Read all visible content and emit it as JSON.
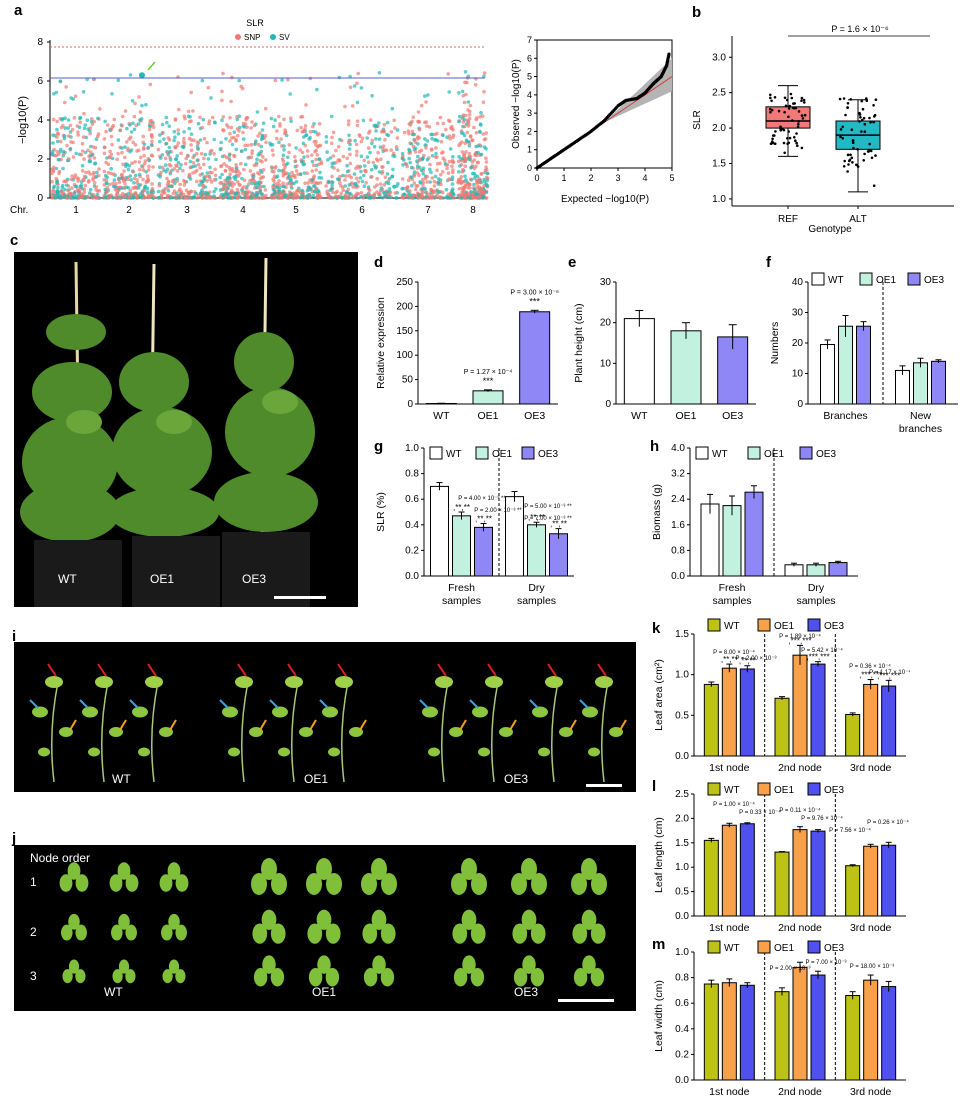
{
  "colors": {
    "wt": "#ffffff",
    "oe1": "#c3f1e0",
    "oe3": "#8f87f5",
    "snp": "#f07a70",
    "sv": "#20b8b8",
    "wt_leaf": "#bcc314",
    "oe1_leaf": "#f8a04a",
    "oe3_leaf": "#5050ee",
    "ref": "#f07a78",
    "alt": "#22b8c4"
  },
  "panel_letters": {
    "a": "a",
    "b": "b",
    "c": "c",
    "d": "d",
    "e": "e",
    "f": "f",
    "g": "g",
    "h": "h",
    "i": "i",
    "j": "j",
    "k": "k",
    "l": "l",
    "m": "m"
  },
  "legend_labels": {
    "wt": "WT",
    "oe1": "OE1",
    "oe3": "OE3"
  },
  "panel_a": {
    "title": "SLR",
    "legend": [
      "SNP",
      "SV"
    ],
    "ylabel": "−log10(P)",
    "yticks": [
      "0",
      "2",
      "4",
      "6",
      "8"
    ],
    "chr_label": "Chr.",
    "chromosomes": [
      "1",
      "2",
      "3",
      "4",
      "5",
      "6",
      "7",
      "8"
    ],
    "qq_ylabel": "Observed −log10(P)",
    "qq_xlabel": "Expected −log10(P)",
    "qq_xticks": [
      "0",
      "1",
      "2",
      "3",
      "4",
      "5"
    ],
    "qq_yticks": [
      "0",
      "1",
      "2",
      "3",
      "4",
      "5",
      "6",
      "7"
    ]
  },
  "panel_b": {
    "pvalue": "P = 1.6 × 10⁻⁶",
    "ylabel": "SLR",
    "xlabel": "Genotype",
    "yticks": [
      "1.0",
      "1.5",
      "2.0",
      "2.5",
      "3.0"
    ]
  },
  "panel_c": {
    "labels": [
      "WT",
      "OE1",
      "OE3"
    ]
  },
  "panel_i": {
    "labels": [
      "WT",
      "OE1",
      "OE3"
    ]
  },
  "panel_j": {
    "title": "Node order",
    "rows": [
      "1",
      "2",
      "3"
    ],
    "labels": [
      "WT",
      "OE1",
      "OE3"
    ]
  },
  "chart_data": [
    {
      "panel": "a",
      "type": "scatter",
      "title": "SLR",
      "xlabel": "Chr.",
      "ylabel": "−log10(P)",
      "categories": [
        "1",
        "2",
        "3",
        "4",
        "5",
        "6",
        "7",
        "8"
      ],
      "ylim": [
        0,
        8
      ],
      "series": [
        {
          "name": "SNP"
        },
        {
          "name": "SV"
        }
      ],
      "significance_lines": [
        7.6,
        6.0
      ],
      "top_hit": {
        "chr": "2",
        "value": 6.3
      }
    },
    {
      "panel": "a-qq",
      "type": "scatter",
      "xlabel": "Expected −log10(P)",
      "ylabel": "Observed −log10(P)",
      "xlim": [
        0,
        5
      ],
      "ylim": [
        0,
        7
      ],
      "x": [
        0,
        0.5,
        1,
        1.5,
        2,
        2.5,
        3,
        3.3,
        3.7,
        4,
        4.3,
        4.6,
        4.8,
        4.9
      ],
      "y": [
        0,
        0.5,
        1,
        1.5,
        2,
        2.6,
        3.4,
        3.7,
        3.8,
        4.1,
        4.6,
        5.0,
        5.6,
        6.3
      ]
    },
    {
      "panel": "b",
      "type": "box",
      "categories": [
        "REF",
        "ALT"
      ],
      "ylabel": "SLR",
      "xlabel": "Genotype",
      "ylim": [
        0.9,
        3.3
      ],
      "series": [
        {
          "name": "REF",
          "min": 1.6,
          "q1": 2.0,
          "median": 2.1,
          "q3": 2.3,
          "max": 2.6
        },
        {
          "name": "ALT",
          "min": 1.1,
          "q1": 1.7,
          "median": 1.9,
          "q3": 2.1,
          "max": 2.4
        }
      ],
      "annotation": "P = 1.6 × 10⁻⁶"
    },
    {
      "panel": "d",
      "type": "bar",
      "categories": [
        "WT",
        "OE1",
        "OE3"
      ],
      "values": [
        1,
        27,
        189
      ],
      "errors": [
        0.5,
        2,
        3
      ],
      "ylabel": "Relative expression",
      "ylim": [
        0,
        250
      ],
      "yticks": [
        0,
        50,
        100,
        150,
        200,
        250
      ],
      "annotations": [
        "",
        "P = 1.27 × 10⁻⁴ ***",
        "P = 3.00 × 10⁻⁶ ***"
      ]
    },
    {
      "panel": "e",
      "type": "bar",
      "categories": [
        "WT",
        "OE1",
        "OE3"
      ],
      "values": [
        21,
        18,
        16.5
      ],
      "errors": [
        2,
        2,
        3
      ],
      "ylabel": "Plant height (cm)",
      "ylim": [
        0,
        30
      ],
      "yticks": [
        0,
        10,
        20,
        30
      ]
    },
    {
      "panel": "f",
      "type": "bar",
      "groups": [
        "Branches",
        "New branches"
      ],
      "series": [
        {
          "name": "WT",
          "values": [
            19.5,
            11
          ],
          "errors": [
            1.5,
            1.5
          ]
        },
        {
          "name": "OE1",
          "values": [
            25.5,
            13.5
          ],
          "errors": [
            3.5,
            1.5
          ]
        },
        {
          "name": "OE3",
          "values": [
            25.5,
            14
          ],
          "errors": [
            1.5,
            0.5
          ]
        }
      ],
      "ylabel": "Numbers",
      "ylim": [
        0,
        40
      ],
      "yticks": [
        0,
        10,
        20,
        30,
        40
      ]
    },
    {
      "panel": "g",
      "type": "bar",
      "groups": [
        "Fresh samples",
        "Dry samples"
      ],
      "series": [
        {
          "name": "WT",
          "values": [
            0.7,
            0.62
          ],
          "errors": [
            0.03,
            0.04
          ]
        },
        {
          "name": "OE1",
          "values": [
            0.47,
            0.4
          ],
          "errors": [
            0.03,
            0.02
          ]
        },
        {
          "name": "OE3",
          "values": [
            0.38,
            0.33
          ],
          "errors": [
            0.03,
            0.04
          ]
        }
      ],
      "ylabel": "SLR (%)",
      "ylim": [
        0,
        1.0
      ],
      "yticks": [
        0,
        0.2,
        0.4,
        0.6,
        0.8,
        1.0
      ],
      "annotations": [
        "P = 4.00 × 10⁻³ **",
        "P = 2.00 × 10⁻³ **",
        "P = 5.00 × 10⁻³ **",
        "P = 7.00 × 10⁻³ **"
      ]
    },
    {
      "panel": "h",
      "type": "bar",
      "groups": [
        "Fresh samples",
        "Dry samples"
      ],
      "series": [
        {
          "name": "WT",
          "values": [
            2.25,
            0.35
          ],
          "errors": [
            0.3,
            0.05
          ]
        },
        {
          "name": "OE1",
          "values": [
            2.2,
            0.35
          ],
          "errors": [
            0.3,
            0.05
          ]
        },
        {
          "name": "OE3",
          "values": [
            2.62,
            0.42
          ],
          "errors": [
            0.2,
            0.04
          ]
        }
      ],
      "ylabel": "Biomass (g)",
      "ylim": [
        0,
        4.0
      ],
      "yticks": [
        0,
        0.8,
        1.6,
        2.4,
        3.2,
        4.0
      ]
    },
    {
      "panel": "k",
      "type": "bar",
      "groups": [
        "1st node",
        "2nd node",
        "3rd node"
      ],
      "series": [
        {
          "name": "WT",
          "values": [
            0.88,
            0.71,
            0.51
          ],
          "errors": [
            0.03,
            0.02,
            0.02
          ]
        },
        {
          "name": "OE1",
          "values": [
            1.08,
            1.24,
            0.88
          ],
          "errors": [
            0.05,
            0.12,
            0.06
          ]
        },
        {
          "name": "OE3",
          "values": [
            1.07,
            1.13,
            0.86
          ],
          "errors": [
            0.04,
            0.03,
            0.07
          ]
        }
      ],
      "ylabel": "Leaf area (cm²)",
      "ylim": [
        0,
        1.5
      ],
      "yticks": [
        0,
        0.5,
        1.0,
        1.5
      ],
      "annotations": [
        "P = 8.00 × 10⁻⁴",
        "P = 2.00 × 10⁻³",
        "P = 1.89 × 10⁻⁴",
        "P = 5.42 × 10⁻⁴",
        "P = 0.36 × 10⁻⁴",
        "P = 1.17 × 10⁻⁴"
      ]
    },
    {
      "panel": "l",
      "type": "bar",
      "groups": [
        "1st node",
        "2nd node",
        "3rd node"
      ],
      "series": [
        {
          "name": "WT",
          "values": [
            1.55,
            1.31,
            1.03
          ],
          "errors": [
            0.04,
            0.01,
            0.02
          ]
        },
        {
          "name": "OE1",
          "values": [
            1.86,
            1.77,
            1.43
          ],
          "errors": [
            0.04,
            0.06,
            0.04
          ]
        },
        {
          "name": "OE3",
          "values": [
            1.89,
            1.74,
            1.45
          ],
          "errors": [
            0.02,
            0.03,
            0.06
          ]
        }
      ],
      "ylabel": "Leaf length (cm)",
      "ylim": [
        0,
        2.5
      ],
      "yticks": [
        0,
        0.5,
        1.0,
        1.5,
        2.0,
        2.5
      ],
      "annotations": [
        "P = 1.00 × 10⁻⁴",
        "P = 0.33 × 10⁻⁴",
        "P = 0.11 × 10⁻⁴",
        "P = 9.76 × 10⁻⁴",
        "P = 7.56 × 10⁻⁴",
        "P = 0.26 × 10⁻⁴"
      ]
    },
    {
      "panel": "m",
      "type": "bar",
      "groups": [
        "1st node",
        "2nd node",
        "3rd node"
      ],
      "series": [
        {
          "name": "WT",
          "values": [
            0.75,
            0.69,
            0.66
          ],
          "errors": [
            0.03,
            0.03,
            0.03
          ]
        },
        {
          "name": "OE1",
          "values": [
            0.76,
            0.88,
            0.78
          ],
          "errors": [
            0.03,
            0.04,
            0.04
          ]
        },
        {
          "name": "OE3",
          "values": [
            0.74,
            0.82,
            0.73
          ],
          "errors": [
            0.02,
            0.03,
            0.04
          ]
        }
      ],
      "ylabel": "Leaf width (cm)",
      "ylim": [
        0,
        1.0
      ],
      "yticks": [
        0,
        0.2,
        0.4,
        0.6,
        0.8,
        1.0
      ],
      "annotations": [
        "P = 2.00 × 10⁻³",
        "P = 7.00 × 10⁻³",
        "P = 18.00 × 10⁻³"
      ]
    }
  ]
}
